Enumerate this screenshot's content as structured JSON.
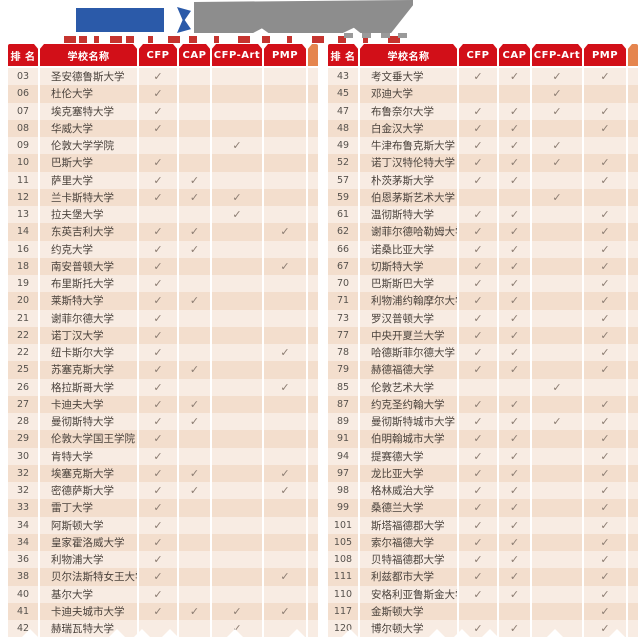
{
  "banner": {
    "logo_block_color": "#2b5aa9",
    "title_block_color": "#8d8d8d",
    "fragment_color": "#c5342f",
    "note": "cropped decorative banner, no legible text"
  },
  "table_header": {
    "rank": "排 名",
    "name": "学校名称",
    "cfp": "CFP",
    "cap": "CAP",
    "cfp_art": "CFP-Art",
    "pmp": "PMP"
  },
  "check_symbol": "✓",
  "colors": {
    "header_red": "#d20f18",
    "strip_orange": "#e5854e",
    "row_light": "#f8ece3",
    "row_dark": "#f3decd",
    "check": "#8c7d72"
  },
  "tables": [
    {
      "name": "left",
      "rows": [
        {
          "rank": "03",
          "name": "圣安德鲁斯大学",
          "checks": [
            1,
            0,
            0,
            0
          ]
        },
        {
          "rank": "06",
          "name": "杜伦大学",
          "checks": [
            1,
            0,
            0,
            0
          ]
        },
        {
          "rank": "07",
          "name": "埃克塞特大学",
          "checks": [
            1,
            0,
            0,
            0
          ]
        },
        {
          "rank": "08",
          "name": "华威大学",
          "checks": [
            1,
            0,
            0,
            0
          ]
        },
        {
          "rank": "09",
          "name": "伦敦大学学院",
          "checks": [
            0,
            0,
            1,
            0
          ]
        },
        {
          "rank": "10",
          "name": "巴斯大学",
          "checks": [
            1,
            0,
            0,
            0
          ]
        },
        {
          "rank": "11",
          "name": "萨里大学",
          "checks": [
            1,
            1,
            0,
            0
          ]
        },
        {
          "rank": "12",
          "name": "兰卡斯特大学",
          "checks": [
            1,
            1,
            1,
            0
          ]
        },
        {
          "rank": "13",
          "name": "拉夫堡大学",
          "checks": [
            0,
            0,
            1,
            0
          ]
        },
        {
          "rank": "14",
          "name": "东英吉利大学",
          "checks": [
            1,
            1,
            0,
            1
          ]
        },
        {
          "rank": "16",
          "name": "约克大学",
          "checks": [
            1,
            1,
            0,
            0
          ]
        },
        {
          "rank": "18",
          "name": "南安普顿大学",
          "checks": [
            1,
            0,
            0,
            1
          ]
        },
        {
          "rank": "19",
          "name": "布里斯托大学",
          "checks": [
            1,
            0,
            0,
            0
          ]
        },
        {
          "rank": "20",
          "name": "莱斯特大学",
          "checks": [
            1,
            1,
            0,
            0
          ]
        },
        {
          "rank": "21",
          "name": "谢菲尔德大学",
          "checks": [
            1,
            0,
            0,
            0
          ]
        },
        {
          "rank": "22",
          "name": "诺丁汉大学",
          "checks": [
            1,
            0,
            0,
            0
          ]
        },
        {
          "rank": "22",
          "name": "纽卡斯尔大学",
          "checks": [
            1,
            0,
            0,
            1
          ]
        },
        {
          "rank": "25",
          "name": "苏塞克斯大学",
          "checks": [
            1,
            1,
            0,
            0
          ]
        },
        {
          "rank": "26",
          "name": "格拉斯哥大学",
          "checks": [
            1,
            0,
            0,
            1
          ]
        },
        {
          "rank": "27",
          "name": "卡迪夫大学",
          "checks": [
            1,
            1,
            0,
            0
          ]
        },
        {
          "rank": "28",
          "name": "曼彻斯特大学",
          "checks": [
            1,
            1,
            0,
            0
          ]
        },
        {
          "rank": "29",
          "name": "伦敦大学国王学院",
          "checks": [
            1,
            0,
            0,
            0
          ]
        },
        {
          "rank": "30",
          "name": "肯特大学",
          "checks": [
            1,
            0,
            0,
            0
          ]
        },
        {
          "rank": "32",
          "name": "埃塞克斯大学",
          "checks": [
            1,
            1,
            0,
            1
          ]
        },
        {
          "rank": "32",
          "name": "密德萨斯大学",
          "checks": [
            1,
            1,
            0,
            1
          ]
        },
        {
          "rank": "33",
          "name": "雷丁大学",
          "checks": [
            1,
            0,
            0,
            0
          ]
        },
        {
          "rank": "34",
          "name": "阿斯顿大学",
          "checks": [
            1,
            0,
            0,
            0
          ]
        },
        {
          "rank": "34",
          "name": "皇家霍洛威大学",
          "checks": [
            1,
            0,
            0,
            0
          ]
        },
        {
          "rank": "36",
          "name": "利物浦大学",
          "checks": [
            1,
            0,
            0,
            0
          ]
        },
        {
          "rank": "38",
          "name": "贝尔法斯特女王大学",
          "checks": [
            1,
            0,
            0,
            1
          ]
        },
        {
          "rank": "40",
          "name": "基尔大学",
          "checks": [
            1,
            0,
            0,
            0
          ]
        },
        {
          "rank": "41",
          "name": "卡迪夫城市大学",
          "checks": [
            1,
            1,
            1,
            1
          ]
        },
        {
          "rank": "42",
          "name": "赫瑞瓦特大学",
          "checks": [
            0,
            0,
            1,
            0
          ]
        }
      ]
    },
    {
      "name": "right",
      "rows": [
        {
          "rank": "43",
          "name": "考文垂大学",
          "checks": [
            1,
            1,
            1,
            1
          ]
        },
        {
          "rank": "45",
          "name": "邓迪大学",
          "checks": [
            0,
            0,
            1,
            0
          ]
        },
        {
          "rank": "47",
          "name": "布鲁奈尔大学",
          "checks": [
            1,
            1,
            1,
            1
          ]
        },
        {
          "rank": "48",
          "name": "白金汉大学",
          "checks": [
            1,
            1,
            0,
            1
          ]
        },
        {
          "rank": "49",
          "name": "牛津布鲁克斯大学",
          "checks": [
            1,
            1,
            1,
            0
          ]
        },
        {
          "rank": "52",
          "name": "诺丁汉特伦特大学",
          "checks": [
            1,
            1,
            1,
            1
          ]
        },
        {
          "rank": "57",
          "name": "朴茨茅斯大学",
          "checks": [
            1,
            1,
            0,
            1
          ]
        },
        {
          "rank": "59",
          "name": "伯恩茅斯艺术大学",
          "checks": [
            0,
            0,
            1,
            0
          ]
        },
        {
          "rank": "61",
          "name": "温彻斯特大学",
          "checks": [
            1,
            1,
            0,
            1
          ]
        },
        {
          "rank": "62",
          "name": "谢菲尔德哈勒姆大学",
          "checks": [
            1,
            1,
            0,
            1
          ]
        },
        {
          "rank": "66",
          "name": "诺桑比亚大学",
          "checks": [
            1,
            1,
            0,
            1
          ]
        },
        {
          "rank": "67",
          "name": "切斯特大学",
          "checks": [
            1,
            1,
            0,
            1
          ]
        },
        {
          "rank": "70",
          "name": "巴斯斯巴大学",
          "checks": [
            1,
            1,
            0,
            1
          ]
        },
        {
          "rank": "71",
          "name": "利物浦约翰摩尔大学",
          "checks": [
            1,
            1,
            0,
            1
          ]
        },
        {
          "rank": "73",
          "name": "罗汉普顿大学",
          "checks": [
            1,
            1,
            0,
            1
          ]
        },
        {
          "rank": "77",
          "name": "中央开夏兰大学",
          "checks": [
            1,
            1,
            0,
            1
          ]
        },
        {
          "rank": "78",
          "name": "哈德斯菲尔德大学",
          "checks": [
            1,
            1,
            0,
            1
          ]
        },
        {
          "rank": "79",
          "name": "赫德福德大学",
          "checks": [
            1,
            1,
            0,
            1
          ]
        },
        {
          "rank": "85",
          "name": "伦敦艺术大学",
          "checks": [
            0,
            0,
            1,
            0
          ]
        },
        {
          "rank": "87",
          "name": "约克圣约翰大学",
          "checks": [
            1,
            1,
            0,
            1
          ]
        },
        {
          "rank": "89",
          "name": "曼彻斯特城市大学",
          "checks": [
            1,
            1,
            1,
            1
          ]
        },
        {
          "rank": "91",
          "name": "伯明翰城市大学",
          "checks": [
            1,
            1,
            0,
            1
          ]
        },
        {
          "rank": "94",
          "name": "提赛德大学",
          "checks": [
            1,
            1,
            0,
            1
          ]
        },
        {
          "rank": "97",
          "name": "龙比亚大学",
          "checks": [
            1,
            1,
            0,
            1
          ]
        },
        {
          "rank": "98",
          "name": "格林威治大学",
          "checks": [
            1,
            1,
            0,
            1
          ]
        },
        {
          "rank": "99",
          "name": "桑德兰大学",
          "checks": [
            1,
            1,
            0,
            1
          ]
        },
        {
          "rank": "101",
          "name": "斯塔福德郡大学",
          "checks": [
            1,
            1,
            0,
            1
          ]
        },
        {
          "rank": "105",
          "name": "索尔福德大学",
          "checks": [
            1,
            1,
            0,
            1
          ]
        },
        {
          "rank": "108",
          "name": "贝特福德郡大学",
          "checks": [
            1,
            1,
            0,
            1
          ]
        },
        {
          "rank": "111",
          "name": "利兹都市大学",
          "checks": [
            1,
            1,
            0,
            1
          ]
        },
        {
          "rank": "110",
          "name": "安格利亚鲁斯金大学",
          "checks": [
            1,
            1,
            0,
            1
          ]
        },
        {
          "rank": "117",
          "name": "金斯顿大学",
          "checks": [
            0,
            0,
            0,
            1
          ]
        },
        {
          "rank": "120",
          "name": "博尔顿大学",
          "checks": [
            1,
            1,
            0,
            1
          ]
        }
      ]
    }
  ]
}
